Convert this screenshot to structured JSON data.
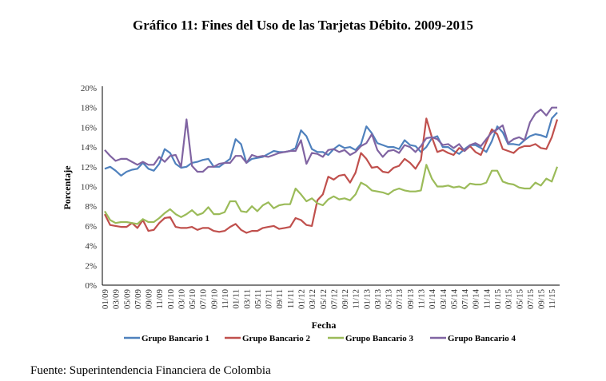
{
  "chart_data": {
    "type": "line",
    "title": "Gráfico 11: Fines del Uso de las Tarjetas Débito. 2009-2015",
    "xlabel": "Fecha",
    "ylabel": "Porcentaje",
    "ylim": [
      0,
      20
    ],
    "y_ticks": [
      "0%",
      "2%",
      "4%",
      "6%",
      "8%",
      "10%",
      "12%",
      "14%",
      "16%",
      "18%",
      "20%"
    ],
    "x_tick_labels": [
      "01/09",
      "03/09",
      "05/09",
      "07/09",
      "09/09",
      "11/09",
      "01/10",
      "03/10",
      "05/10",
      "07/10",
      "09/10",
      "11/10",
      "01/11",
      "03/11",
      "05/11",
      "07/11",
      "09/11",
      "11/11",
      "01/12",
      "03/12",
      "05/12",
      "07/12",
      "09/12",
      "11/12",
      "01/13",
      "03/13",
      "05/13",
      "07/13",
      "09/13",
      "11/13",
      "01/14",
      "03/14",
      "05/14",
      "07/14",
      "09/14",
      "11/14",
      "01/15",
      "03/15",
      "05/15",
      "07/15",
      "09/15",
      "11/15"
    ],
    "x_range": "01/2009 - 12/2015 (monthly)",
    "legend_position": "bottom",
    "grid": false,
    "series": [
      {
        "name": "Grupo Bancario 1",
        "color": "#4f81bd",
        "values": [
          11.8,
          12.0,
          11.6,
          11.1,
          11.5,
          11.7,
          11.8,
          12.4,
          11.8,
          11.6,
          12.3,
          13.8,
          13.4,
          12.3,
          11.9,
          12.0,
          12.4,
          12.5,
          12.7,
          12.8,
          12.0,
          12.0,
          12.4,
          12.8,
          14.8,
          14.3,
          12.4,
          12.8,
          12.9,
          13.0,
          13.3,
          13.6,
          13.5,
          13.5,
          13.6,
          13.9,
          15.7,
          15.1,
          13.8,
          13.5,
          13.5,
          13.2,
          13.8,
          14.2,
          13.9,
          14.0,
          13.7,
          14.3,
          16.1,
          15.4,
          14.4,
          14.2,
          14.0,
          14.0,
          13.8,
          14.7,
          14.2,
          14.1,
          13.5,
          14.0,
          14.9,
          15.1,
          14.0,
          14.0,
          13.6,
          13.3,
          13.8,
          14.2,
          14.2,
          13.9,
          13.5,
          14.6,
          16.1,
          15.5,
          14.3,
          14.3,
          14.2,
          14.7,
          15.1,
          15.3,
          15.2,
          15.0,
          16.9,
          17.5
        ]
      },
      {
        "name": "Grupo Bancario 2",
        "color": "#c0504d",
        "values": [
          7.2,
          6.1,
          6.0,
          5.9,
          5.9,
          6.3,
          5.8,
          6.6,
          5.5,
          5.6,
          6.3,
          6.8,
          6.9,
          5.9,
          5.8,
          5.8,
          5.9,
          5.6,
          5.8,
          5.8,
          5.5,
          5.4,
          5.5,
          5.9,
          6.2,
          5.6,
          5.3,
          5.5,
          5.5,
          5.8,
          5.9,
          6.0,
          5.7,
          5.8,
          5.9,
          6.8,
          6.6,
          6.1,
          6.0,
          8.6,
          9.2,
          11.0,
          10.7,
          11.1,
          11.2,
          10.4,
          11.4,
          13.4,
          12.8,
          11.9,
          12.0,
          11.5,
          11.4,
          11.9,
          12.1,
          12.8,
          12.4,
          11.8,
          12.7,
          16.9,
          15.0,
          13.5,
          13.7,
          13.4,
          13.2,
          13.9,
          13.6,
          14.1,
          13.5,
          13.2,
          14.5,
          15.8,
          15.3,
          13.8,
          13.6,
          13.4,
          13.9,
          14.1,
          14.1,
          14.3,
          13.9,
          13.8,
          15.0,
          16.8
        ]
      },
      {
        "name": "Grupo Bancario 3",
        "color": "#9bbb59",
        "values": [
          7.5,
          6.6,
          6.3,
          6.4,
          6.4,
          6.3,
          6.2,
          6.7,
          6.4,
          6.4,
          6.8,
          7.3,
          7.7,
          7.2,
          6.9,
          7.2,
          7.6,
          7.1,
          7.3,
          7.9,
          7.2,
          7.2,
          7.4,
          8.5,
          8.5,
          7.5,
          7.4,
          8.0,
          7.5,
          8.1,
          8.4,
          7.8,
          8.1,
          8.2,
          8.2,
          9.8,
          9.2,
          8.5,
          8.8,
          8.3,
          8.1,
          8.7,
          9.0,
          8.7,
          8.8,
          8.6,
          9.2,
          10.4,
          10.1,
          9.6,
          9.5,
          9.4,
          9.2,
          9.6,
          9.8,
          9.6,
          9.5,
          9.5,
          9.6,
          12.2,
          10.8,
          10.0,
          10.0,
          10.1,
          9.9,
          10.0,
          9.8,
          10.3,
          10.2,
          10.2,
          10.4,
          11.6,
          11.6,
          10.5,
          10.3,
          10.2,
          9.9,
          9.8,
          9.8,
          10.4,
          10.1,
          10.8,
          10.5,
          12.0
        ]
      },
      {
        "name": "Grupo Bancario 4",
        "color": "#8064a2",
        "values": [
          13.7,
          13.1,
          12.6,
          12.8,
          12.8,
          12.5,
          12.2,
          12.5,
          12.2,
          12.2,
          13.0,
          12.5,
          13.1,
          13.2,
          12.0,
          16.8,
          12.1,
          11.5,
          11.5,
          12.0,
          12.0,
          12.3,
          12.4,
          12.4,
          13.1,
          13.1,
          12.4,
          13.2,
          13.0,
          13.1,
          13.0,
          13.2,
          13.4,
          13.5,
          13.6,
          13.6,
          14.7,
          12.3,
          13.4,
          13.3,
          13.0,
          13.7,
          13.8,
          13.5,
          13.7,
          13.2,
          13.5,
          14.1,
          14.4,
          15.3,
          13.7,
          13.0,
          13.6,
          13.7,
          13.4,
          14.2,
          14.0,
          13.5,
          14.1,
          14.9,
          15.0,
          14.8,
          14.2,
          14.3,
          13.9,
          14.3,
          13.6,
          14.2,
          14.4,
          14.1,
          14.8,
          15.5,
          15.8,
          16.2,
          14.4,
          14.8,
          15.0,
          14.7,
          16.5,
          17.4,
          17.8,
          17.2,
          18.0,
          18.0
        ]
      }
    ]
  },
  "footer": "Fuente: Superintendencia Financiera de Colombia"
}
